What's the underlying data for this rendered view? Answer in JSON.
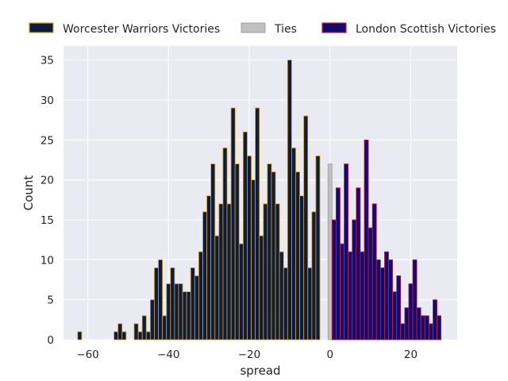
{
  "chart_data": {
    "type": "bar",
    "title": "",
    "xlabel": "spread",
    "ylabel": "Count",
    "xlim": [
      -66,
      31.5
    ],
    "ylim": [
      0,
      36.75
    ],
    "xticks": [
      -60,
      -40,
      -20,
      0,
      20
    ],
    "yticks": [
      0,
      5,
      10,
      15,
      20,
      25,
      30,
      35
    ],
    "grid": true,
    "legend_position": "top",
    "background": "#eaeaf2",
    "series": [
      {
        "name": "Worcester Warriors Victories",
        "fill": "#0d1b3e",
        "edge": "#d4a017",
        "x": [
          -62,
          -53,
          -52,
          -51,
          -48,
          -47,
          -46,
          -45,
          -44,
          -43,
          -42,
          -41,
          -40,
          -39,
          -38,
          -37,
          -36,
          -35,
          -34,
          -33,
          -32,
          -31,
          -30,
          -29,
          -28,
          -27,
          -26,
          -25,
          -24,
          -23,
          -22,
          -21,
          -20,
          -19,
          -18,
          -17,
          -16,
          -15,
          -14,
          -13,
          -12,
          -11,
          -10,
          -9,
          -8,
          -7,
          -6,
          -5,
          -4,
          -3,
          -2,
          -1
        ],
        "values": [
          1,
          1,
          2,
          1,
          2,
          1,
          3,
          1,
          5,
          9,
          10,
          3,
          7,
          9,
          7,
          7,
          6,
          6,
          9,
          8,
          11,
          16,
          18,
          22,
          13,
          17,
          24,
          17,
          29,
          22,
          12,
          26,
          23,
          20,
          29,
          13,
          17,
          22,
          21,
          17,
          11,
          9,
          35,
          24,
          21,
          18,
          28,
          9,
          16,
          23,
          0,
          0
        ]
      },
      {
        "name": "Ties",
        "fill": "#c0c0c0",
        "edge": "#a0a0a0",
        "x": [
          0
        ],
        "values": [
          22
        ]
      },
      {
        "name": "London Scottish Victories",
        "fill": "#120a6e",
        "edge": "#d01c3a",
        "x": [
          1,
          2,
          3,
          4,
          5,
          6,
          7,
          8,
          9,
          10,
          11,
          12,
          13,
          14,
          15,
          16,
          17,
          18,
          19,
          20,
          21,
          22,
          23,
          24,
          25,
          26,
          27
        ],
        "values": [
          15,
          19,
          12,
          22,
          11,
          15,
          19,
          11,
          25,
          14,
          17,
          10,
          9,
          11,
          10,
          6,
          8,
          2,
          4,
          7,
          10,
          4,
          3,
          3,
          2,
          5,
          3
        ]
      }
    ]
  }
}
